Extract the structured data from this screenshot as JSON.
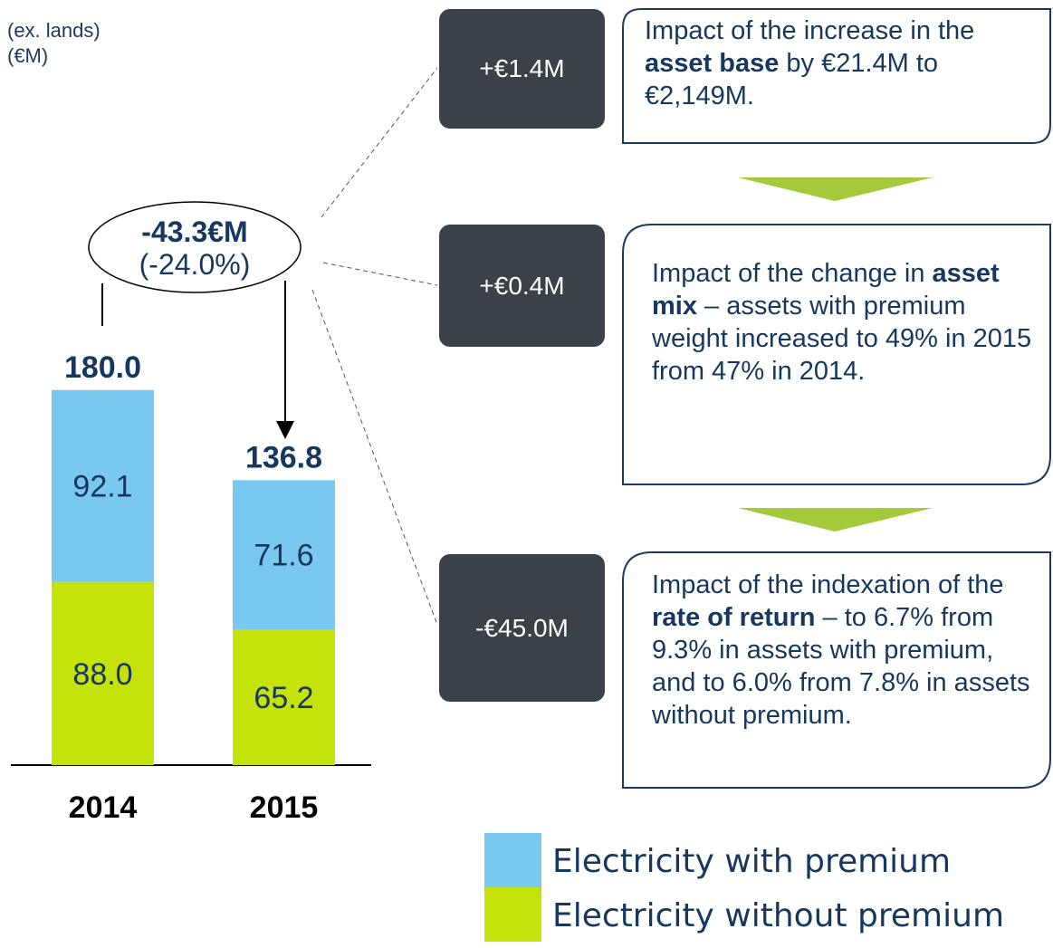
{
  "unit_note": [
    "(ex. lands)",
    "(€M)"
  ],
  "chart_data": {
    "type": "bar",
    "stacked": true,
    "categories": [
      "2014",
      "2015"
    ],
    "series": [
      {
        "name": "Electricity without premium",
        "color": "#c5e20a",
        "values": [
          88,
          65.2
        ],
        "value_labels": [
          "88.0",
          "65.2"
        ]
      },
      {
        "name": "Electricity with premium",
        "color": "#78c8f0",
        "values": [
          92.1,
          71.6
        ],
        "value_labels": [
          "92.1",
          "71.6"
        ]
      }
    ],
    "totals": [
      180,
      136.8
    ],
    "total_labels": [
      "180.0",
      "136.8"
    ],
    "change": {
      "value": "-43.3€M",
      "percent": "(-24.0%)"
    }
  },
  "impacts": [
    {
      "delta": "+€1.4M",
      "text": [
        "Impact of the increase in the ",
        "asset base",
        " by €21.4M to €2,149M."
      ]
    },
    {
      "delta": "+€0.4M",
      "text": [
        "Impact of the change in ",
        "asset mix",
        " – assets with premium weight increased to 49% in 2015 from 47% in 2014."
      ]
    },
    {
      "delta": "-€45.0M",
      "text": [
        "Impact of the indexation of the ",
        "rate of return",
        " – to 6.7% from 9.3% in assets with premium, and to 6.0% from 7.8% in assets without premium."
      ]
    }
  ]
}
